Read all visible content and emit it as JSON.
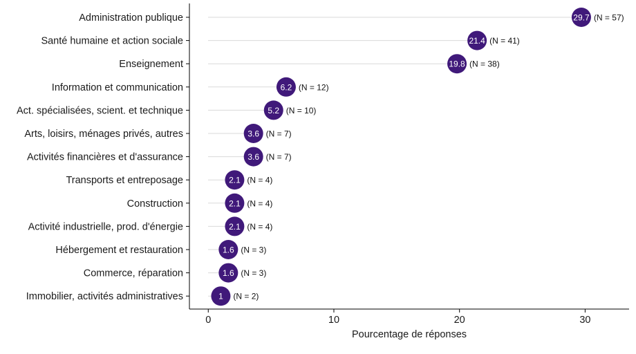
{
  "chart_data": {
    "type": "lollipop",
    "xlabel": "Pourcentage de réponses",
    "ylabel": "",
    "xlim": [
      -1.5,
      33.5
    ],
    "xticks": [
      0,
      10,
      20,
      30
    ],
    "grid": false,
    "legend": false,
    "point_color": "#40197A",
    "segment_color": "#d9d9d9",
    "categories": [
      "Administration publique",
      "Santé humaine et action sociale",
      "Enseignement",
      "Information et communication",
      "Act. spécialisées, scient. et technique",
      "Arts, loisirs, ménages privés, autres",
      "Activités financières et d'assurance",
      "Transports et entreposage",
      "Construction",
      "Activité industrielle, prod. d'énergie",
      "Hébergement et restauration",
      "Commerce, réparation",
      "Immobilier, activités administratives"
    ],
    "values": [
      29.7,
      21.4,
      19.8,
      6.2,
      5.2,
      3.6,
      3.6,
      2.1,
      2.1,
      2.1,
      1.6,
      1.6,
      1
    ],
    "value_labels": [
      "29.7",
      "21.4",
      "19.8",
      "6.2",
      "5.2",
      "3.6",
      "3.6",
      "2.1",
      "2.1",
      "2.1",
      "1.6",
      "1.6",
      "1"
    ],
    "n_labels": [
      "(N = 57)",
      "(N = 41)",
      "(N = 38)",
      "(N = 12)",
      "(N = 10)",
      "(N = 7)",
      "(N = 7)",
      "(N = 4)",
      "(N = 4)",
      "(N = 4)",
      "(N = 3)",
      "(N = 3)",
      "(N = 2)"
    ]
  }
}
